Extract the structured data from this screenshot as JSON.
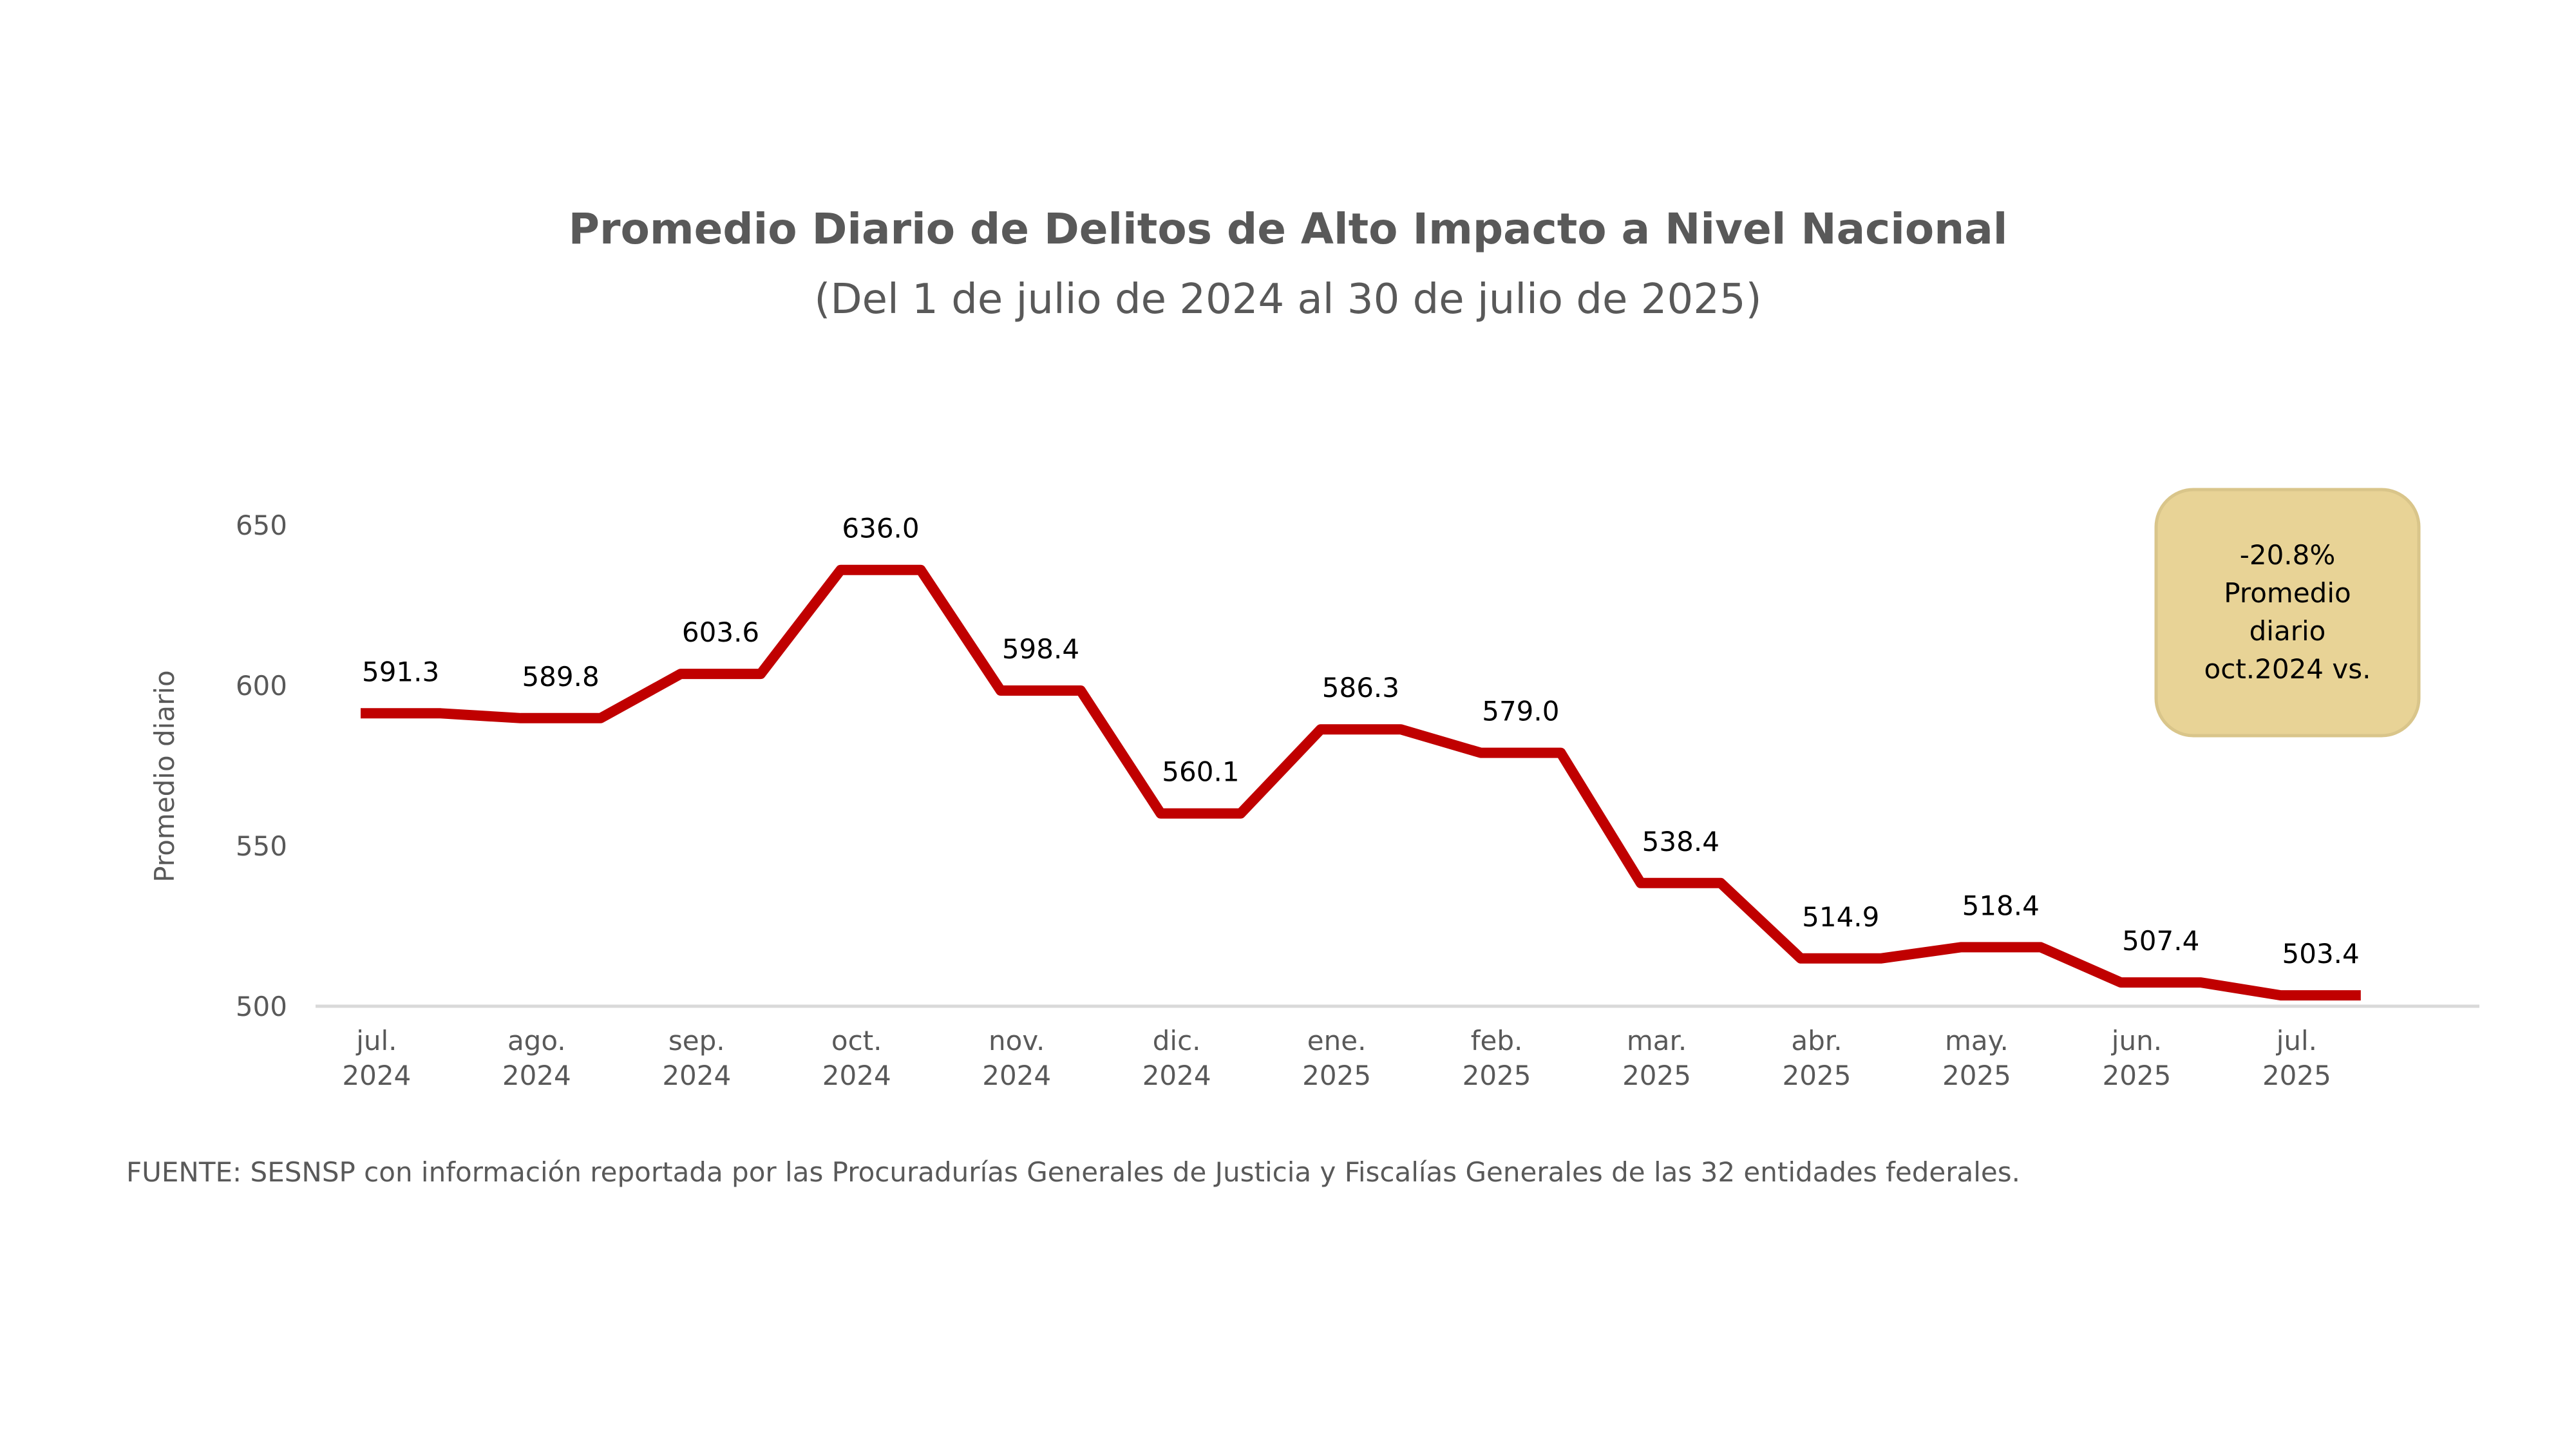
{
  "chart_data": {
    "type": "line",
    "title": "Promedio Diario de Delitos de Alto Impacto a Nivel Nacional",
    "subtitle": "(Del 1 de julio de 2024 al 30 de julio de 2025)",
    "ylabel": "Promedio diario",
    "xlabel": "",
    "ylim": [
      500,
      650
    ],
    "yticks": [
      500,
      550,
      600,
      650
    ],
    "grid": false,
    "categories": [
      [
        "jul.",
        "2024"
      ],
      [
        "ago.",
        "2024"
      ],
      [
        "sep.",
        "2024"
      ],
      [
        "oct.",
        "2024"
      ],
      [
        "nov.",
        "2024"
      ],
      [
        "dic.",
        "2024"
      ],
      [
        "ene.",
        "2025"
      ],
      [
        "feb.",
        "2025"
      ],
      [
        "mar.",
        "2025"
      ],
      [
        "abr.",
        "2025"
      ],
      [
        "may.",
        "2025"
      ],
      [
        "jun.",
        "2025"
      ],
      [
        "jul.",
        "2025"
      ]
    ],
    "series": [
      {
        "values": [
          591.3,
          589.8,
          603.6,
          636.0,
          598.4,
          560.1,
          586.3,
          579.0,
          538.4,
          514.9,
          518.4,
          507.4,
          503.4
        ],
        "labels": [
          "591.3",
          "589.8",
          "603.6",
          "636.0",
          "598.4",
          "560.1",
          "586.3",
          "579.0",
          "538.4",
          "514.9",
          "518.4",
          "507.4",
          "503.4"
        ],
        "color": "#C00000"
      }
    ],
    "annotation": {
      "lines": [
        "-20.8%",
        "Promedio",
        "diario",
        "oct.2024 vs."
      ],
      "fill": "#E8D396",
      "border": "#D9C58A"
    },
    "axis_color": "#D9D9D9"
  },
  "source_note": "FUENTE: SESNSP con información reportada por las Procuradurías Generales de Justicia y Fiscalías Generales de las 32 entidades federales."
}
